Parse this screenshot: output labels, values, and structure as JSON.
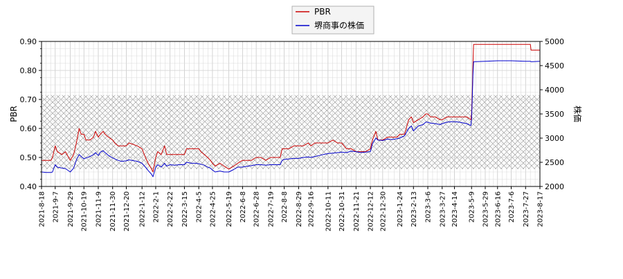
{
  "chart_data": {
    "type": "line",
    "title": "",
    "legend": {
      "placement": "top-center",
      "entries": [
        {
          "label": "PBR",
          "color": "#cc0000"
        },
        {
          "label": "堺商事の株価",
          "color": "#0000cc"
        }
      ]
    },
    "grid": true,
    "hatched_band": {
      "y_left": [
        0.46,
        0.715
      ]
    },
    "x_axis": {
      "start": "2021-08-18",
      "end": "2023-08-17",
      "tick_labels": [
        "2021-8-18",
        "2021-9-7",
        "2021-9-29",
        "2021-10-19",
        "2021-11-9",
        "2021-11-30",
        "2021-12-20",
        "2022-1-12",
        "2022-2-1",
        "2022-2-22",
        "2022-3-15",
        "2022-4-5",
        "2022-4-25",
        "2022-5-19",
        "2022-6-8",
        "2022-6-28",
        "2022-7-19",
        "2022-8-8",
        "2022-8-29",
        "2022-9-16",
        "2022-10-11",
        "2022-10-31",
        "2022-11-21",
        "2022-12-12",
        "2022-12-30",
        "2023-1-24",
        "2023-2-13",
        "2023-3-6",
        "2023-3-27",
        "2023-4-14",
        "2023-5-9",
        "2023-5-29",
        "2023-6-16",
        "2023-7-6",
        "2023-7-27",
        "2023-8-17"
      ]
    },
    "y_left": {
      "label": "PBR",
      "ylim": [
        0.4,
        0.9
      ],
      "ticks": [
        "0.40",
        "0.50",
        "0.60",
        "0.70",
        "0.80",
        "0.90"
      ]
    },
    "y_right": {
      "label": "株価",
      "ylim": [
        2000,
        5000
      ],
      "ticks": [
        "2000",
        "2500",
        "3000",
        "3500",
        "4000",
        "4500",
        "5000"
      ]
    },
    "series": [
      {
        "name": "PBR",
        "axis": "left",
        "color": "#cc0000",
        "points": [
          [
            "2021-08-18",
            0.49
          ],
          [
            "2021-08-25",
            0.49
          ],
          [
            "2021-09-01",
            0.49
          ],
          [
            "2021-09-03",
            0.5
          ],
          [
            "2021-09-07",
            0.54
          ],
          [
            "2021-09-10",
            0.52
          ],
          [
            "2021-09-17",
            0.51
          ],
          [
            "2021-09-22",
            0.52
          ],
          [
            "2021-09-29",
            0.49
          ],
          [
            "2021-10-04",
            0.51
          ],
          [
            "2021-10-08",
            0.55
          ],
          [
            "2021-10-12",
            0.6
          ],
          [
            "2021-10-15",
            0.58
          ],
          [
            "2021-10-19",
            0.58
          ],
          [
            "2021-10-22",
            0.56
          ],
          [
            "2021-10-28",
            0.56
          ],
          [
            "2021-11-02",
            0.57
          ],
          [
            "2021-11-05",
            0.59
          ],
          [
            "2021-11-09",
            0.57
          ],
          [
            "2021-11-12",
            0.58
          ],
          [
            "2021-11-16",
            0.59
          ],
          [
            "2021-11-19",
            0.58
          ],
          [
            "2021-11-24",
            0.57
          ],
          [
            "2021-11-30",
            0.56
          ],
          [
            "2021-12-03",
            0.55
          ],
          [
            "2021-12-08",
            0.54
          ],
          [
            "2021-12-13",
            0.54
          ],
          [
            "2021-12-20",
            0.54
          ],
          [
            "2021-12-24",
            0.55
          ],
          [
            "2022-01-05",
            0.54
          ],
          [
            "2022-01-12",
            0.53
          ],
          [
            "2022-01-17",
            0.5
          ],
          [
            "2022-01-21",
            0.48
          ],
          [
            "2022-01-26",
            0.46
          ],
          [
            "2022-01-28",
            0.45
          ],
          [
            "2022-02-01",
            0.5
          ],
          [
            "2022-02-04",
            0.52
          ],
          [
            "2022-02-09",
            0.51
          ],
          [
            "2022-02-14",
            0.54
          ],
          [
            "2022-02-17",
            0.51
          ],
          [
            "2022-02-22",
            0.51
          ],
          [
            "2022-03-01",
            0.51
          ],
          [
            "2022-03-08",
            0.51
          ],
          [
            "2022-03-15",
            0.51
          ],
          [
            "2022-03-18",
            0.53
          ],
          [
            "2022-03-25",
            0.53
          ],
          [
            "2022-04-01",
            0.53
          ],
          [
            "2022-04-05",
            0.53
          ],
          [
            "2022-04-08",
            0.52
          ],
          [
            "2022-04-13",
            0.51
          ],
          [
            "2022-04-18",
            0.5
          ],
          [
            "2022-04-22",
            0.49
          ],
          [
            "2022-04-25",
            0.48
          ],
          [
            "2022-04-29",
            0.47
          ],
          [
            "2022-05-06",
            0.48
          ],
          [
            "2022-05-12",
            0.47
          ],
          [
            "2022-05-19",
            0.46
          ],
          [
            "2022-05-26",
            0.47
          ],
          [
            "2022-06-01",
            0.48
          ],
          [
            "2022-06-08",
            0.49
          ],
          [
            "2022-06-15",
            0.49
          ],
          [
            "2022-06-21",
            0.49
          ],
          [
            "2022-06-28",
            0.5
          ],
          [
            "2022-07-05",
            0.5
          ],
          [
            "2022-07-12",
            0.49
          ],
          [
            "2022-07-19",
            0.5
          ],
          [
            "2022-07-26",
            0.5
          ],
          [
            "2022-08-02",
            0.5
          ],
          [
            "2022-08-05",
            0.53
          ],
          [
            "2022-08-08",
            0.53
          ],
          [
            "2022-08-15",
            0.53
          ],
          [
            "2022-08-22",
            0.54
          ],
          [
            "2022-08-29",
            0.54
          ],
          [
            "2022-09-05",
            0.54
          ],
          [
            "2022-09-12",
            0.55
          ],
          [
            "2022-09-16",
            0.54
          ],
          [
            "2022-09-22",
            0.55
          ],
          [
            "2022-09-28",
            0.55
          ],
          [
            "2022-10-04",
            0.55
          ],
          [
            "2022-10-11",
            0.55
          ],
          [
            "2022-10-18",
            0.56
          ],
          [
            "2022-10-25",
            0.55
          ],
          [
            "2022-10-31",
            0.55
          ],
          [
            "2022-11-07",
            0.53
          ],
          [
            "2022-11-14",
            0.53
          ],
          [
            "2022-11-21",
            0.52
          ],
          [
            "2022-11-28",
            0.52
          ],
          [
            "2022-12-05",
            0.52
          ],
          [
            "2022-12-12",
            0.53
          ],
          [
            "2022-12-15",
            0.56
          ],
          [
            "2022-12-20",
            0.59
          ],
          [
            "2022-12-23",
            0.56
          ],
          [
            "2022-12-30",
            0.56
          ],
          [
            "2023-01-06",
            0.57
          ],
          [
            "2023-01-13",
            0.57
          ],
          [
            "2023-01-20",
            0.57
          ],
          [
            "2023-01-24",
            0.58
          ],
          [
            "2023-01-31",
            0.58
          ],
          [
            "2023-02-06",
            0.63
          ],
          [
            "2023-02-10",
            0.64
          ],
          [
            "2023-02-13",
            0.62
          ],
          [
            "2023-02-20",
            0.63
          ],
          [
            "2023-02-27",
            0.64
          ],
          [
            "2023-03-03",
            0.65
          ],
          [
            "2023-03-06",
            0.65
          ],
          [
            "2023-03-10",
            0.64
          ],
          [
            "2023-03-17",
            0.64
          ],
          [
            "2023-03-24",
            0.63
          ],
          [
            "2023-03-27",
            0.63
          ],
          [
            "2023-04-03",
            0.64
          ],
          [
            "2023-04-10",
            0.64
          ],
          [
            "2023-04-14",
            0.64
          ],
          [
            "2023-04-21",
            0.64
          ],
          [
            "2023-04-28",
            0.64
          ],
          [
            "2023-05-02",
            0.64
          ],
          [
            "2023-05-08",
            0.63
          ],
          [
            "2023-05-09",
            0.65
          ],
          [
            "2023-05-10",
            0.72
          ],
          [
            "2023-05-11",
            0.82
          ],
          [
            "2023-05-12",
            0.89
          ],
          [
            "2023-05-29",
            0.89
          ],
          [
            "2023-06-16",
            0.89
          ],
          [
            "2023-07-06",
            0.89
          ],
          [
            "2023-07-27",
            0.89
          ],
          [
            "2023-08-03",
            0.89
          ],
          [
            "2023-08-04",
            0.87
          ],
          [
            "2023-08-17",
            0.87
          ]
        ]
      },
      {
        "name": "堺商事の株価",
        "axis": "right",
        "color": "#0000cc",
        "points": [
          [
            "2021-08-18",
            2300
          ],
          [
            "2021-08-25",
            2290
          ],
          [
            "2021-09-01",
            2290
          ],
          [
            "2021-09-03",
            2300
          ],
          [
            "2021-09-07",
            2450
          ],
          [
            "2021-09-10",
            2400
          ],
          [
            "2021-09-17",
            2380
          ],
          [
            "2021-09-22",
            2370
          ],
          [
            "2021-09-29",
            2300
          ],
          [
            "2021-10-04",
            2380
          ],
          [
            "2021-10-08",
            2550
          ],
          [
            "2021-10-12",
            2660
          ],
          [
            "2021-10-15",
            2620
          ],
          [
            "2021-10-19",
            2570
          ],
          [
            "2021-10-22",
            2590
          ],
          [
            "2021-10-28",
            2620
          ],
          [
            "2021-11-02",
            2660
          ],
          [
            "2021-11-05",
            2700
          ],
          [
            "2021-11-09",
            2640
          ],
          [
            "2021-11-12",
            2710
          ],
          [
            "2021-11-16",
            2740
          ],
          [
            "2021-11-19",
            2700
          ],
          [
            "2021-11-24",
            2640
          ],
          [
            "2021-11-30",
            2590
          ],
          [
            "2021-12-03",
            2570
          ],
          [
            "2021-12-08",
            2540
          ],
          [
            "2021-12-13",
            2520
          ],
          [
            "2021-12-20",
            2530
          ],
          [
            "2021-12-24",
            2550
          ],
          [
            "2022-01-05",
            2520
          ],
          [
            "2022-01-12",
            2480
          ],
          [
            "2022-01-17",
            2400
          ],
          [
            "2022-01-21",
            2330
          ],
          [
            "2022-01-26",
            2250
          ],
          [
            "2022-01-28",
            2200
          ],
          [
            "2022-02-01",
            2400
          ],
          [
            "2022-02-04",
            2450
          ],
          [
            "2022-02-09",
            2400
          ],
          [
            "2022-02-14",
            2480
          ],
          [
            "2022-02-17",
            2420
          ],
          [
            "2022-02-22",
            2450
          ],
          [
            "2022-03-01",
            2440
          ],
          [
            "2022-03-08",
            2450
          ],
          [
            "2022-03-15",
            2450
          ],
          [
            "2022-03-18",
            2500
          ],
          [
            "2022-03-25",
            2480
          ],
          [
            "2022-04-01",
            2480
          ],
          [
            "2022-04-05",
            2470
          ],
          [
            "2022-04-08",
            2460
          ],
          [
            "2022-04-13",
            2440
          ],
          [
            "2022-04-18",
            2400
          ],
          [
            "2022-04-22",
            2380
          ],
          [
            "2022-04-25",
            2340
          ],
          [
            "2022-04-29",
            2300
          ],
          [
            "2022-05-06",
            2320
          ],
          [
            "2022-05-12",
            2300
          ],
          [
            "2022-05-19",
            2300
          ],
          [
            "2022-05-26",
            2350
          ],
          [
            "2022-06-01",
            2400
          ],
          [
            "2022-06-08",
            2400
          ],
          [
            "2022-06-15",
            2420
          ],
          [
            "2022-06-21",
            2430
          ],
          [
            "2022-06-28",
            2450
          ],
          [
            "2022-07-05",
            2450
          ],
          [
            "2022-07-12",
            2440
          ],
          [
            "2022-07-19",
            2450
          ],
          [
            "2022-07-26",
            2450
          ],
          [
            "2022-08-02",
            2450
          ],
          [
            "2022-08-05",
            2540
          ],
          [
            "2022-08-08",
            2560
          ],
          [
            "2022-08-15",
            2570
          ],
          [
            "2022-08-22",
            2580
          ],
          [
            "2022-08-29",
            2580
          ],
          [
            "2022-09-05",
            2600
          ],
          [
            "2022-09-12",
            2610
          ],
          [
            "2022-09-16",
            2600
          ],
          [
            "2022-09-22",
            2620
          ],
          [
            "2022-09-28",
            2640
          ],
          [
            "2022-10-04",
            2660
          ],
          [
            "2022-10-11",
            2680
          ],
          [
            "2022-10-18",
            2690
          ],
          [
            "2022-10-25",
            2700
          ],
          [
            "2022-10-31",
            2710
          ],
          [
            "2022-11-07",
            2700
          ],
          [
            "2022-11-14",
            2730
          ],
          [
            "2022-11-21",
            2720
          ],
          [
            "2022-11-28",
            2700
          ],
          [
            "2022-12-05",
            2710
          ],
          [
            "2022-12-12",
            2720
          ],
          [
            "2022-12-15",
            2880
          ],
          [
            "2022-12-20",
            3000
          ],
          [
            "2022-12-23",
            2960
          ],
          [
            "2022-12-30",
            2950
          ],
          [
            "2023-01-06",
            2980
          ],
          [
            "2023-01-13",
            2970
          ],
          [
            "2023-01-20",
            2990
          ],
          [
            "2023-01-24",
            3000
          ],
          [
            "2023-01-31",
            3050
          ],
          [
            "2023-02-06",
            3200
          ],
          [
            "2023-02-10",
            3250
          ],
          [
            "2023-02-13",
            3150
          ],
          [
            "2023-02-20",
            3250
          ],
          [
            "2023-02-27",
            3280
          ],
          [
            "2023-03-03",
            3330
          ],
          [
            "2023-03-06",
            3330
          ],
          [
            "2023-03-10",
            3310
          ],
          [
            "2023-03-17",
            3300
          ],
          [
            "2023-03-24",
            3280
          ],
          [
            "2023-03-27",
            3300
          ],
          [
            "2023-04-03",
            3330
          ],
          [
            "2023-04-10",
            3340
          ],
          [
            "2023-04-14",
            3340
          ],
          [
            "2023-04-21",
            3330
          ],
          [
            "2023-04-28",
            3310
          ],
          [
            "2023-05-02",
            3300
          ],
          [
            "2023-05-08",
            3260
          ],
          [
            "2023-05-09",
            3400
          ],
          [
            "2023-05-10",
            3800
          ],
          [
            "2023-05-11",
            4300
          ],
          [
            "2023-05-12",
            4580
          ],
          [
            "2023-05-29",
            4590
          ],
          [
            "2023-06-16",
            4600
          ],
          [
            "2023-07-06",
            4600
          ],
          [
            "2023-07-27",
            4590
          ],
          [
            "2023-08-03",
            4590
          ],
          [
            "2023-08-04",
            4580
          ],
          [
            "2023-08-17",
            4590
          ]
        ]
      }
    ]
  }
}
